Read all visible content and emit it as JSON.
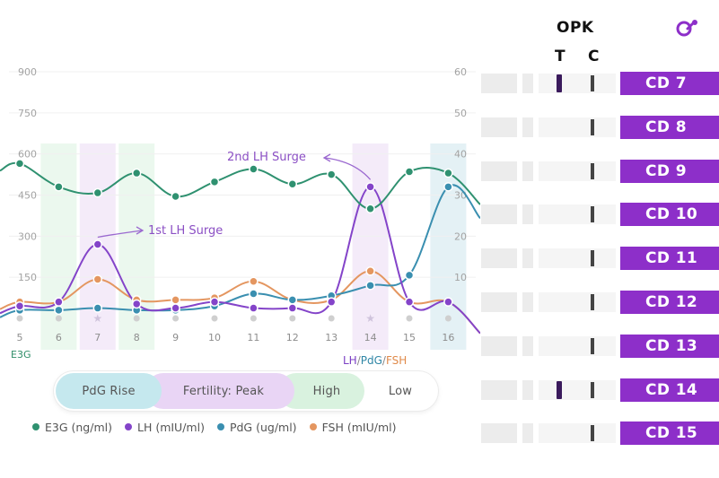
{
  "chart_data": {
    "type": "line",
    "x": [
      "5",
      "6",
      "7",
      "8",
      "9",
      "10",
      "11",
      "12",
      "13",
      "14",
      "15",
      "16"
    ],
    "y_left_ticks": [
      "900",
      "750",
      "600",
      "450",
      "300",
      "150"
    ],
    "y_right_ticks": [
      "60",
      "50",
      "40",
      "30",
      "20",
      "10"
    ],
    "y_left_range": [
      0,
      900
    ],
    "y_right_range": [
      0,
      60
    ],
    "series": [
      {
        "name": "E3G (ng/ml)",
        "axis": "left",
        "color": "#2f9170",
        "values": [
          565,
          480,
          458,
          530,
          445,
          498,
          545,
          490,
          525,
          400,
          535,
          530
        ]
      },
      {
        "name": "LH (mIU/ml)",
        "axis": "right",
        "color": "#8444c9",
        "values": [
          3,
          4,
          18,
          3.5,
          2.5,
          4,
          2.5,
          2.5,
          4,
          32,
          4,
          4
        ]
      },
      {
        "name": "PdG (ug/ml)",
        "axis": "right",
        "color": "#3a8fb0",
        "values": [
          2,
          2,
          2.5,
          2,
          2,
          3,
          6,
          4.5,
          5.5,
          8,
          10.5,
          32
        ]
      },
      {
        "name": "FSH (mIU/ml)",
        "axis": "right",
        "color": "#e49660",
        "values": [
          4,
          4,
          9.5,
          4.5,
          4.5,
          5,
          9,
          4.5,
          4.5,
          11.5,
          4,
          4
        ]
      }
    ],
    "annotations": [
      {
        "text": "1st LH Surge",
        "x": "7"
      },
      {
        "text": "2nd LH Surge",
        "x": "14"
      }
    ],
    "left_axis_label": "E3G",
    "right_axis_label": {
      "lh": "LH",
      "sep": "/",
      "pdg": "PdG",
      "sep2": "/",
      "fsh": "FSH"
    },
    "grid": true
  },
  "phases": {
    "pdg_rise": "PdG Rise",
    "fertility_peak": "Fertility: Peak",
    "high": "High",
    "low": "Low"
  },
  "legend": {
    "e3g": "E3G (ng/ml)",
    "lh": "LH (mIU/ml)",
    "pdg": "PdG (ug/ml)",
    "fsh": "FSH (mIU/ml)"
  },
  "opk": {
    "title": "OPK",
    "t_label": "T",
    "c_label": "C",
    "strips": [
      {
        "day": "CD 7",
        "t_line": true
      },
      {
        "day": "CD 8",
        "t_line": false
      },
      {
        "day": "CD 9",
        "t_line": false
      },
      {
        "day": "CD 10",
        "t_line": false
      },
      {
        "day": "CD 11",
        "t_line": false
      },
      {
        "day": "CD 12",
        "t_line": false
      },
      {
        "day": "CD 13",
        "t_line": false
      },
      {
        "day": "CD 14",
        "t_line": true
      },
      {
        "day": "CD 15",
        "t_line": false
      }
    ]
  },
  "colors": {
    "e3g": "#2f9170",
    "lh": "#8444c9",
    "pdg": "#3a8fb0",
    "fsh": "#e49660",
    "cd_label": "#8d2fc9"
  }
}
